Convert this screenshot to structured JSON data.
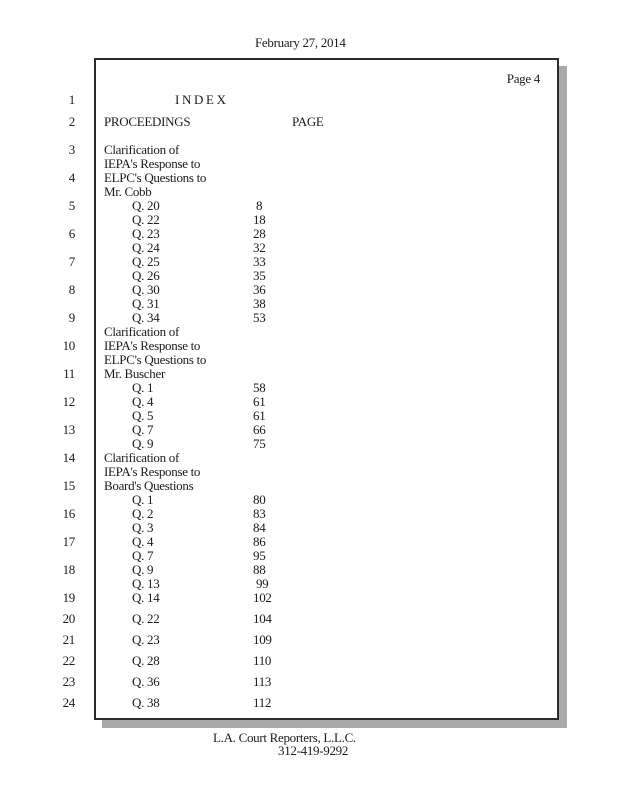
{
  "page": {
    "date": "February 27, 2014",
    "page_label": "Page 4",
    "footer_company": "L.A. Court Reporters, L.L.C.",
    "footer_phone": "312-419-9292"
  },
  "colors": {
    "text": "#1b1b1b",
    "box_border": "#2b2b2b",
    "box_shadow": "#a9a9a9",
    "background": "#ffffff"
  },
  "index": {
    "rows": [
      {
        "type": "title",
        "ln": "1",
        "text": "I N D E X"
      },
      {
        "type": "header",
        "ln": "2",
        "text": "PROCEEDINGS",
        "page_header": "PAGE"
      },
      {
        "type": "body",
        "ln": "3",
        "text": "Clarification of",
        "indent": 0,
        "page": ""
      },
      {
        "type": "body",
        "ln": "",
        "text": "IEPA's Response to",
        "indent": 0,
        "page": ""
      },
      {
        "type": "body",
        "ln": "4",
        "text": "ELPC's Questions to",
        "indent": 0,
        "page": ""
      },
      {
        "type": "body",
        "ln": "",
        "text": "Mr. Cobb",
        "indent": 0,
        "page": ""
      },
      {
        "type": "body",
        "ln": "5",
        "text": "Q. 20",
        "indent": 1,
        "page": " 8"
      },
      {
        "type": "body",
        "ln": "",
        "text": "Q. 22",
        "indent": 1,
        "page": "18"
      },
      {
        "type": "body",
        "ln": "6",
        "text": "Q. 23",
        "indent": 1,
        "page": "28"
      },
      {
        "type": "body",
        "ln": "",
        "text": "Q. 24",
        "indent": 1,
        "page": "32"
      },
      {
        "type": "body",
        "ln": "7",
        "text": "Q. 25",
        "indent": 1,
        "page": "33"
      },
      {
        "type": "body",
        "ln": "",
        "text": "Q. 26",
        "indent": 1,
        "page": "35"
      },
      {
        "type": "body",
        "ln": "8",
        "text": "Q. 30",
        "indent": 1,
        "page": "36"
      },
      {
        "type": "body",
        "ln": "",
        "text": "Q. 31",
        "indent": 1,
        "page": "38"
      },
      {
        "type": "body",
        "ln": "9",
        "text": "Q. 34",
        "indent": 1,
        "page": "53"
      },
      {
        "type": "body",
        "ln": "",
        "text": "Clarification of",
        "indent": 0,
        "page": ""
      },
      {
        "type": "body",
        "ln": "10",
        "text": "IEPA's Response to",
        "indent": 0,
        "page": ""
      },
      {
        "type": "body",
        "ln": "",
        "text": "ELPC's Questions to",
        "indent": 0,
        "page": ""
      },
      {
        "type": "body",
        "ln": "11",
        "text": "Mr. Buscher",
        "indent": 0,
        "page": ""
      },
      {
        "type": "body",
        "ln": "",
        "text": "Q. 1",
        "indent": 1,
        "page": "58"
      },
      {
        "type": "body",
        "ln": "12",
        "text": "Q. 4",
        "indent": 1,
        "page": "61"
      },
      {
        "type": "body",
        "ln": "",
        "text": "Q. 5",
        "indent": 1,
        "page": "61"
      },
      {
        "type": "body",
        "ln": "13",
        "text": "Q. 7",
        "indent": 1,
        "page": "66"
      },
      {
        "type": "body",
        "ln": "",
        "text": "Q. 9",
        "indent": 1,
        "page": "75"
      },
      {
        "type": "body",
        "ln": "14",
        "text": "Clarification of",
        "indent": 0,
        "page": ""
      },
      {
        "type": "body",
        "ln": "",
        "text": "IEPA's Response to",
        "indent": 0,
        "page": ""
      },
      {
        "type": "body",
        "ln": "15",
        "text": "Board's Questions",
        "indent": 0,
        "page": ""
      },
      {
        "type": "body",
        "ln": "",
        "text": "Q. 1",
        "indent": 1,
        "page": "80"
      },
      {
        "type": "body",
        "ln": "16",
        "text": "Q. 2",
        "indent": 1,
        "page": "83"
      },
      {
        "type": "body",
        "ln": "",
        "text": "Q. 3",
        "indent": 1,
        "page": "84"
      },
      {
        "type": "body",
        "ln": "17",
        "text": "Q. 4",
        "indent": 1,
        "page": "86"
      },
      {
        "type": "body",
        "ln": "",
        "text": "Q. 7",
        "indent": 1,
        "page": "95"
      },
      {
        "type": "body",
        "ln": "18",
        "text": "Q. 9",
        "indent": 1,
        "page": "88"
      },
      {
        "type": "body",
        "ln": "",
        "text": "Q. 13",
        "indent": 1,
        "page": " 99"
      },
      {
        "type": "body",
        "ln": "19",
        "text": "Q. 14",
        "indent": 1,
        "page": "102"
      },
      {
        "type": "tail",
        "ln": "20",
        "text": "Q. 22",
        "indent": 1,
        "page": "104"
      },
      {
        "type": "tail",
        "ln": "21",
        "text": "Q. 23",
        "indent": 1,
        "page": "109"
      },
      {
        "type": "tail",
        "ln": "22",
        "text": "Q. 28",
        "indent": 1,
        "page": "110"
      },
      {
        "type": "tail",
        "ln": "23",
        "text": "Q. 36",
        "indent": 1,
        "page": "113"
      },
      {
        "type": "tail",
        "ln": "24",
        "text": "Q. 38",
        "indent": 1,
        "page": "112"
      }
    ]
  }
}
